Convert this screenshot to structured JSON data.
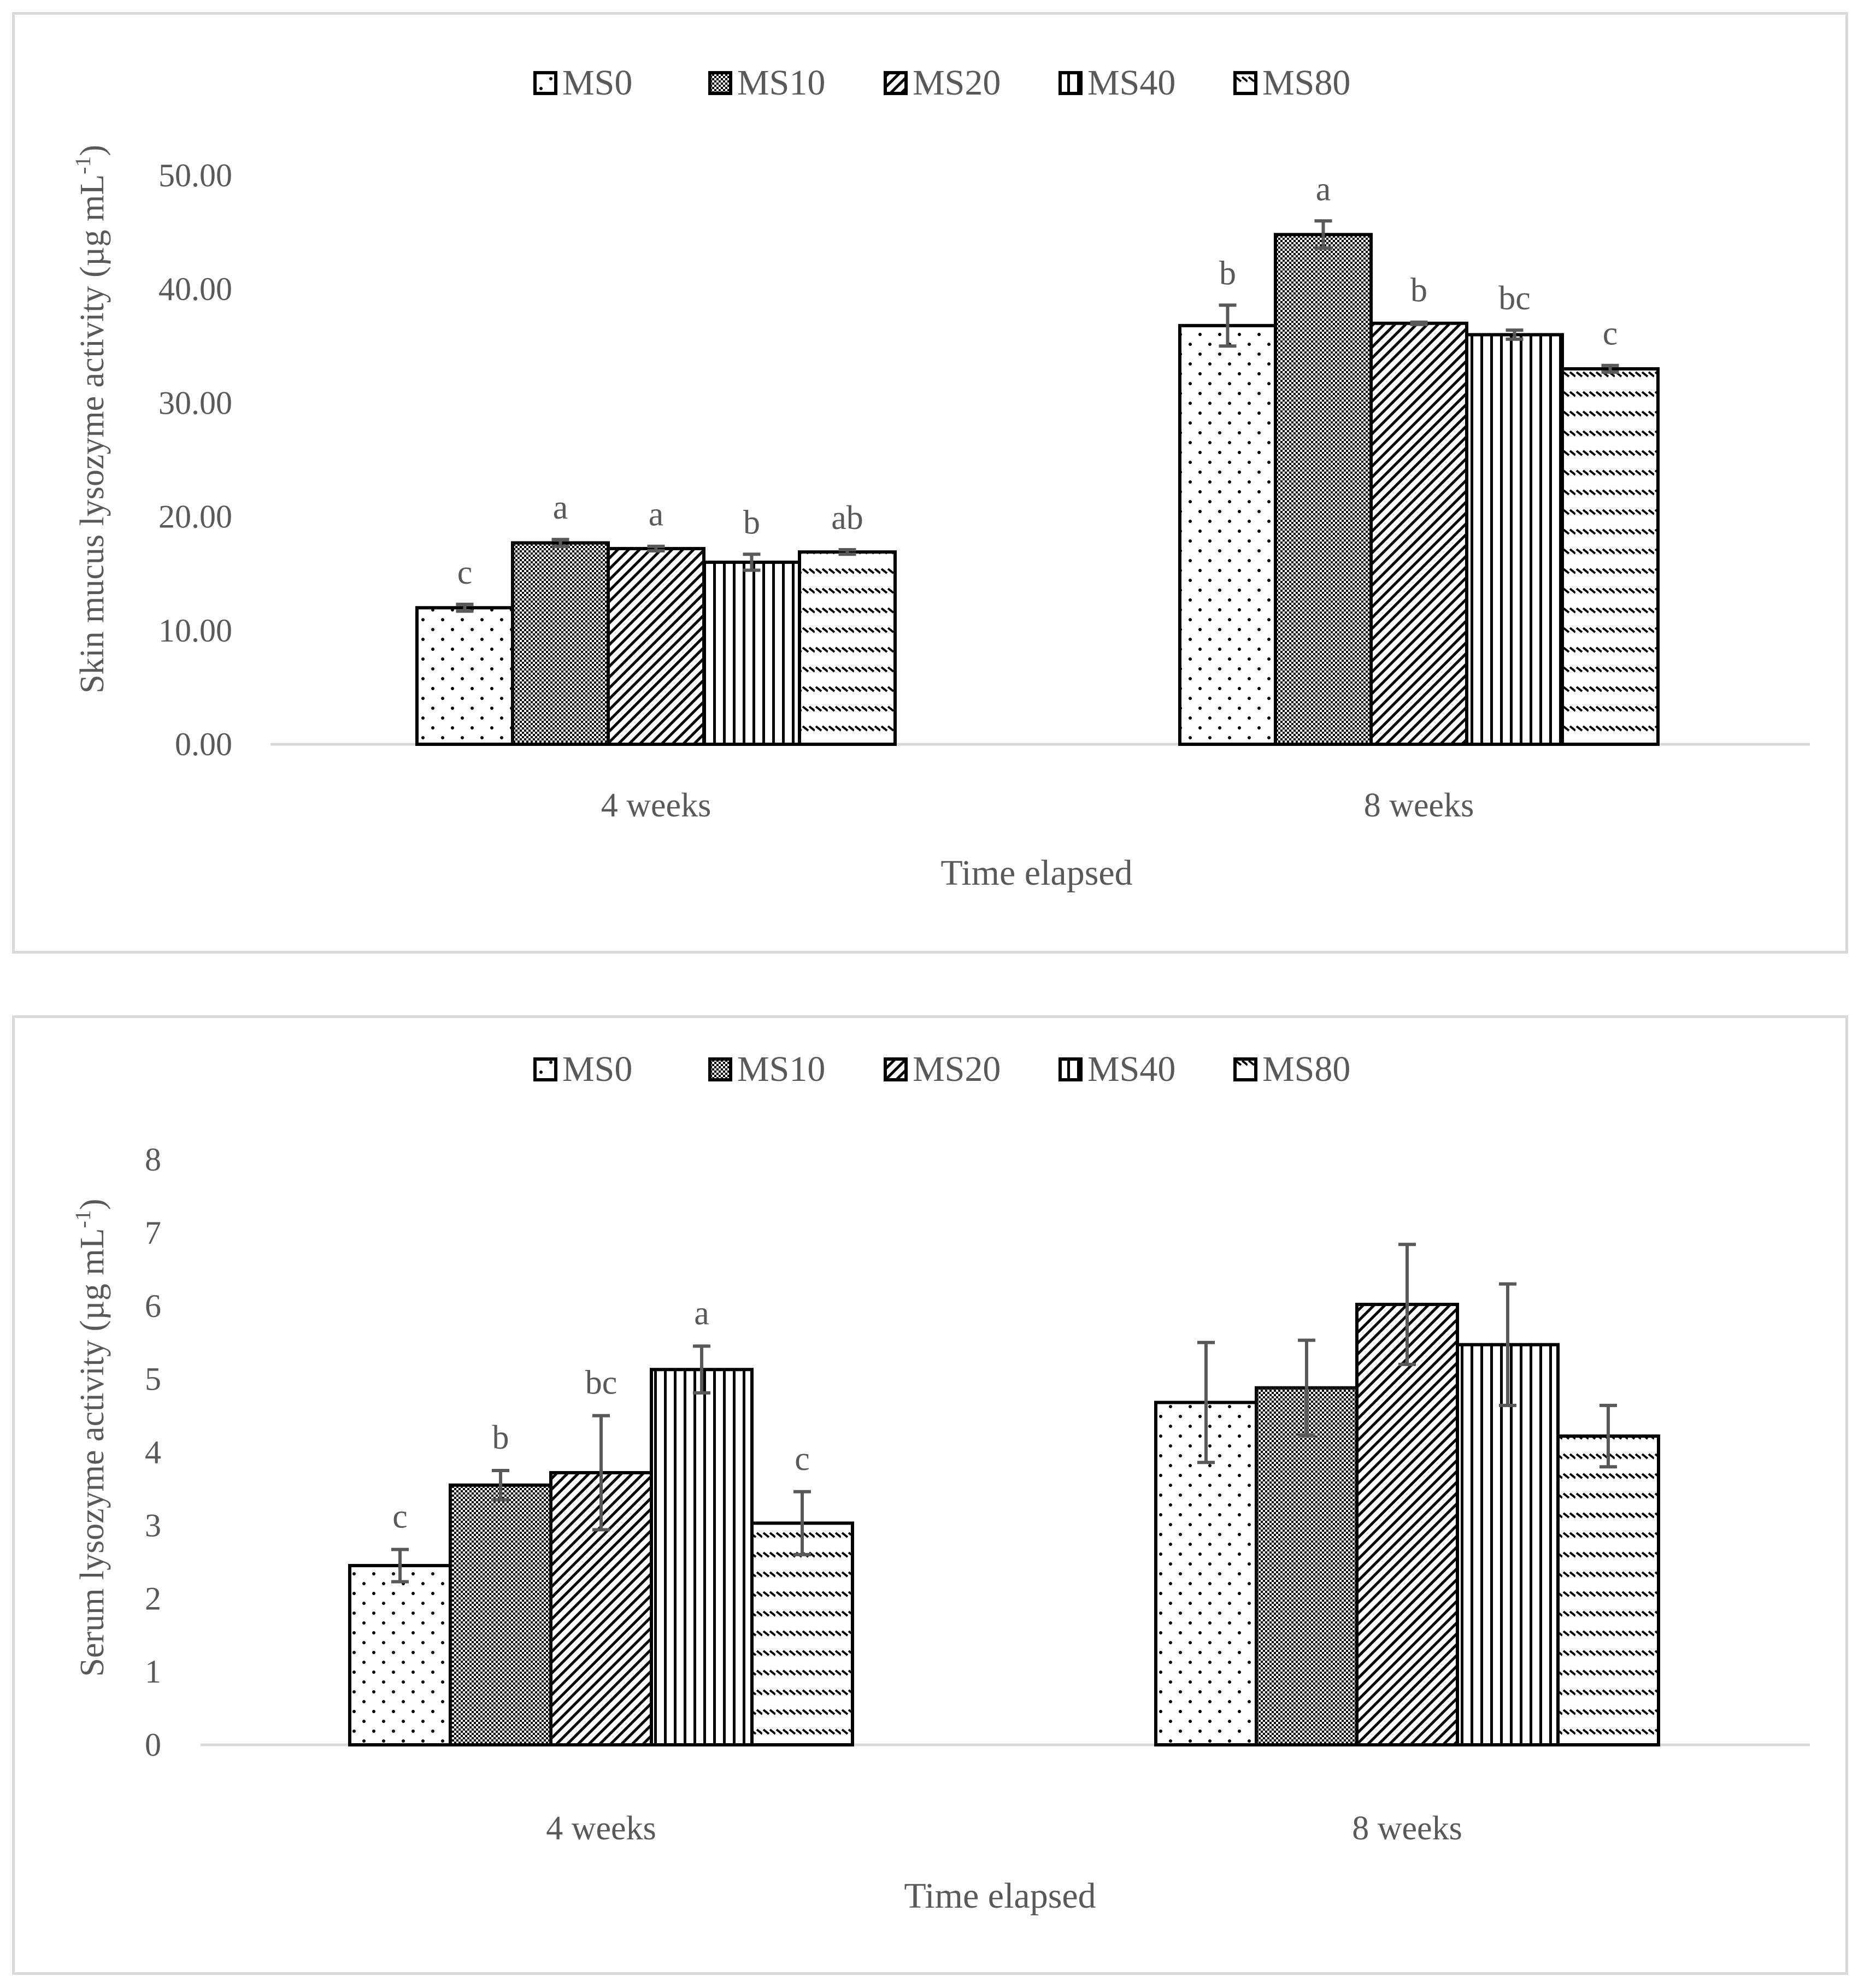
{
  "charts": [
    {
      "type": "bar",
      "ylabel": "Skin mucus lysozyme activity (µg mL",
      "ylabel_sup": "-1",
      "ylabel_tail": ")",
      "xlabel": "Time elapsed",
      "ylim": [
        0,
        50
      ],
      "yticks": [
        "0.00",
        "10.00",
        "20.00",
        "30.00",
        "40.00",
        "50.00"
      ],
      "categories": [
        "4 weeks",
        "8 weeks"
      ],
      "legend": [
        "MS0",
        "MS10",
        "MS20",
        "MS40",
        "MS80"
      ],
      "series": [
        {
          "name": "MS0",
          "values": [
            12.0,
            36.8
          ],
          "errors": [
            0.3,
            1.8
          ],
          "letters": [
            "c",
            "b"
          ],
          "pattern": "dots"
        },
        {
          "name": "MS10",
          "values": [
            17.7,
            44.8
          ],
          "errors": [
            0.3,
            1.2
          ],
          "letters": [
            "a",
            "a"
          ],
          "pattern": "checker"
        },
        {
          "name": "MS20",
          "values": [
            17.2,
            37.0
          ],
          "errors": [
            0.2,
            0.1
          ],
          "letters": [
            "a",
            "b"
          ],
          "pattern": "diag"
        },
        {
          "name": "MS40",
          "values": [
            16.0,
            36.0
          ],
          "errors": [
            0.7,
            0.4
          ],
          "letters": [
            "b",
            "bc"
          ],
          "pattern": "vert"
        },
        {
          "name": "MS80",
          "values": [
            16.9,
            33.0
          ],
          "errors": [
            0.2,
            0.3
          ],
          "letters": [
            "ab",
            "c"
          ],
          "pattern": "waves"
        }
      ]
    },
    {
      "type": "bar",
      "ylabel": "Serum lysozyme activity (µg mL",
      "ylabel_sup": "-1",
      "ylabel_tail": ")",
      "xlabel": "Time elapsed",
      "ylim": [
        0,
        8
      ],
      "yticks": [
        "0",
        "1",
        "2",
        "3",
        "4",
        "5",
        "6",
        "7",
        "8"
      ],
      "categories": [
        "4 weeks",
        "8 weeks"
      ],
      "legend": [
        "MS0",
        "MS10",
        "MS20",
        "MS40",
        "MS80"
      ],
      "series": [
        {
          "name": "MS0",
          "values": [
            2.45,
            4.68
          ],
          "errors": [
            0.22,
            0.82
          ],
          "letters": [
            "c",
            ""
          ],
          "pattern": "dots"
        },
        {
          "name": "MS10",
          "values": [
            3.55,
            4.88
          ],
          "errors": [
            0.2,
            0.65
          ],
          "letters": [
            "b",
            ""
          ],
          "pattern": "checker"
        },
        {
          "name": "MS20",
          "values": [
            3.72,
            6.02
          ],
          "errors": [
            0.78,
            0.82
          ],
          "letters": [
            "bc",
            ""
          ],
          "pattern": "diag"
        },
        {
          "name": "MS40",
          "values": [
            5.13,
            5.47
          ],
          "errors": [
            0.32,
            0.83
          ],
          "letters": [
            "a",
            ""
          ],
          "pattern": "vert"
        },
        {
          "name": "MS80",
          "values": [
            3.03,
            4.22
          ],
          "errors": [
            0.43,
            0.42
          ],
          "letters": [
            "c",
            ""
          ],
          "pattern": "waves"
        }
      ]
    }
  ]
}
